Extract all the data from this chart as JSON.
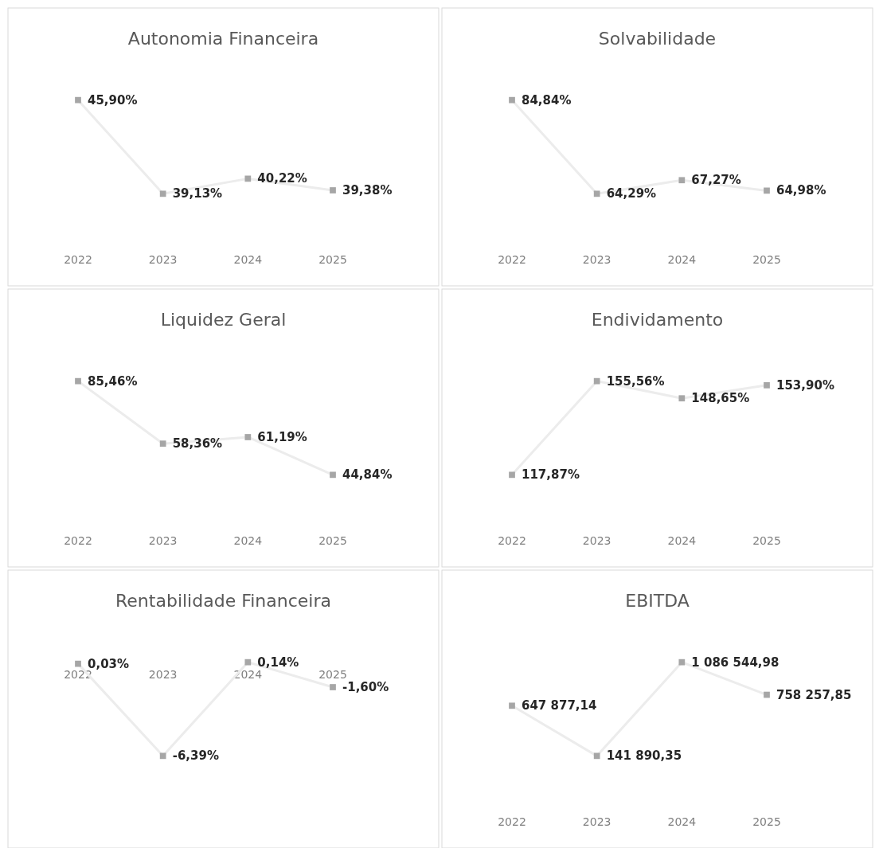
{
  "chart_data": [
    {
      "type": "line",
      "title": "Autonomia Financeira",
      "categories": [
        "2022",
        "2023",
        "2024",
        "2025"
      ],
      "series": [
        {
          "color": "#a6a6a6",
          "values": [
            45.9,
            39.13,
            40.22,
            39.38
          ],
          "value_labels": [
            "45,90%",
            "39,13%",
            "40,22%",
            "39,38%"
          ]
        }
      ],
      "marker": "square",
      "line_style": "solid",
      "grid": false
    },
    {
      "type": "line",
      "title": "Solvabilidade",
      "categories": [
        "2022",
        "2023",
        "2024",
        "2025"
      ],
      "series": [
        {
          "color": "#a6a6a6",
          "values": [
            84.84,
            64.29,
            67.27,
            64.98
          ],
          "value_labels": [
            "84,84%",
            "64,29%",
            "67,27%",
            "64,98%"
          ]
        }
      ],
      "marker": "square",
      "line_style": "solid",
      "grid": false
    },
    {
      "type": "line",
      "title": "Liquidez Geral",
      "categories": [
        "2022",
        "2023",
        "2024",
        "2025"
      ],
      "series": [
        {
          "color": "#a6a6a6",
          "values": [
            85.46,
            58.36,
            61.19,
            44.84
          ],
          "value_labels": [
            "85,46%",
            "58,36%",
            "61,19%",
            "44,84%"
          ]
        }
      ],
      "marker": "square",
      "line_style": "solid",
      "grid": false
    },
    {
      "type": "line",
      "title": "Endividamento",
      "categories": [
        "2022",
        "2023",
        "2024",
        "2025"
      ],
      "series": [
        {
          "color": "#a6a6a6",
          "values": [
            117.87,
            155.56,
            148.65,
            153.9
          ],
          "value_labels": [
            "117,87%",
            "155,56%",
            "148,65%",
            "153,90%"
          ]
        }
      ],
      "marker": "square",
      "line_style": "solid",
      "grid": false
    },
    {
      "type": "line",
      "title": "Rentabilidade Financeira",
      "categories": [
        "2022",
        "2023",
        "2024",
        "2025"
      ],
      "series": [
        {
          "color": "#a6a6a6",
          "values": [
            0.03,
            -6.39,
            0.14,
            -1.6
          ],
          "value_labels": [
            "0,03%",
            "-6,39%",
            "0,14%",
            "-1,60%"
          ]
        }
      ],
      "marker": "square",
      "line_style": "solid",
      "grid": false
    },
    {
      "type": "line",
      "title": "EBITDA",
      "categories": [
        "2022",
        "2023",
        "2024",
        "2025"
      ],
      "series": [
        {
          "color": "#a6a6a6",
          "values": [
            647877.14,
            141890.35,
            1086544.98,
            758257.85
          ],
          "value_labels": [
            "647 877,14",
            "141 890,35",
            "1 086 544,98",
            "758 257,85"
          ]
        }
      ],
      "marker": "square",
      "line_style": "solid",
      "grid": false
    }
  ]
}
